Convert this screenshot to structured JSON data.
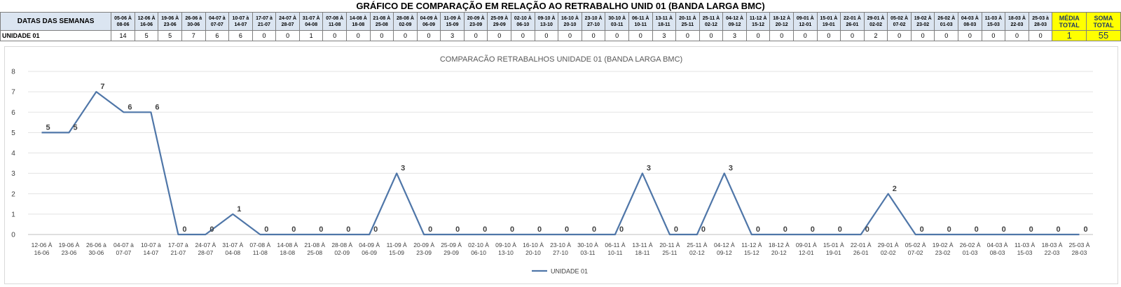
{
  "table": {
    "title": "GRÁFICO DE COMPARAÇÃO EM RELAÇÃO AO RETRABALHO UNID 01 (BANDA LARGA BMC)",
    "header_label": "DATAS DAS SEMANAS",
    "weeks": [
      [
        "05-06 À",
        "08-06"
      ],
      [
        "12-06 À",
        "16-06"
      ],
      [
        "19-06 À",
        "23-06"
      ],
      [
        "26-06 à",
        "30-06"
      ],
      [
        "04-07 à",
        "07-07"
      ],
      [
        "10-07 à",
        "14-07"
      ],
      [
        "17-07 à",
        "21-07"
      ],
      [
        "24-07 À",
        "28-07"
      ],
      [
        "31-07 À",
        "04-08"
      ],
      [
        "07-08 À",
        "11-08"
      ],
      [
        "14-08 À",
        "18-08"
      ],
      [
        "21-08 À",
        "25-08"
      ],
      [
        "28-08 À",
        "02-09"
      ],
      [
        "04-09 À",
        "06-09"
      ],
      [
        "11-09 À",
        "15-09"
      ],
      [
        "20-09 À",
        "23-09"
      ],
      [
        "25-09 À",
        "29-09"
      ],
      [
        "02-10 À",
        "06-10"
      ],
      [
        "09-10 À",
        "13-10"
      ],
      [
        "16-10 À",
        "20-10"
      ],
      [
        "23-10 À",
        "27-10"
      ],
      [
        "30-10 À",
        "03-11"
      ],
      [
        "06-11 À",
        "10-11"
      ],
      [
        "13-11 À",
        "18-11"
      ],
      [
        "20-11 À",
        "25-11"
      ],
      [
        "25-11 À",
        "02-12"
      ],
      [
        "04-12 À",
        "09-12"
      ],
      [
        "11-12 À",
        "15-12"
      ],
      [
        "18-12 À",
        "20-12"
      ],
      [
        "09-01 À",
        "12-01"
      ],
      [
        "15-01 À",
        "19-01"
      ],
      [
        "22-01 À",
        "26-01"
      ],
      [
        "29-01 À",
        "02-02"
      ],
      [
        "05-02 À",
        "07-02"
      ],
      [
        "19-02 À",
        "23-02"
      ],
      [
        "26-02 À",
        "01-03"
      ],
      [
        "04-03 À",
        "08-03"
      ],
      [
        "11-03 À",
        "15-03"
      ],
      [
        "18-03 À",
        "22-03"
      ],
      [
        "25-03 à",
        "28-03"
      ]
    ],
    "media_label": [
      "MÉDIA",
      "TOTAL"
    ],
    "soma_label": [
      "SOMA",
      "TOTAL"
    ],
    "row_label": "UNIDADE 01",
    "values": [
      14,
      5,
      5,
      7,
      6,
      6,
      0,
      0,
      1,
      0,
      0,
      0,
      0,
      0,
      3,
      0,
      0,
      0,
      0,
      0,
      0,
      0,
      0,
      3,
      0,
      0,
      3,
      0,
      0,
      0,
      0,
      0,
      2,
      0,
      0,
      0,
      0,
      0,
      0,
      0
    ],
    "media_value": "1",
    "soma_value": "55"
  },
  "chart_data": {
    "type": "line",
    "title": "COMPARACÃO RETRABALHOS UNIDADE 01 (BANDA LARGA BMC)",
    "categories": [
      [
        "12-06 À",
        "16-06"
      ],
      [
        "19-06 À",
        "23-06"
      ],
      [
        "26-06 à",
        "30-06"
      ],
      [
        "04-07 à",
        "07-07"
      ],
      [
        "10-07 à",
        "14-07"
      ],
      [
        "17-07 à",
        "21-07"
      ],
      [
        "24-07 À",
        "28-07"
      ],
      [
        "31-07 À",
        "04-08"
      ],
      [
        "07-08 À",
        "11-08"
      ],
      [
        "14-08 À",
        "18-08"
      ],
      [
        "21-08 À",
        "25-08"
      ],
      [
        "28-08 À",
        "02-09"
      ],
      [
        "04-09 À",
        "06-09"
      ],
      [
        "11-09 À",
        "15-09"
      ],
      [
        "20-09 À",
        "23-09"
      ],
      [
        "25-09 À",
        "29-09"
      ],
      [
        "02-10 À",
        "06-10"
      ],
      [
        "09-10 À",
        "13-10"
      ],
      [
        "16-10 À",
        "20-10"
      ],
      [
        "23-10 À",
        "27-10"
      ],
      [
        "30-10 À",
        "03-11"
      ],
      [
        "06-11 À",
        "10-11"
      ],
      [
        "13-11 À",
        "18-11"
      ],
      [
        "20-11 À",
        "25-11"
      ],
      [
        "25-11 À",
        "02-12"
      ],
      [
        "04-12 À",
        "09-12"
      ],
      [
        "11-12 À",
        "15-12"
      ],
      [
        "18-12 À",
        "20-12"
      ],
      [
        "09-01 À",
        "12-01"
      ],
      [
        "15-01 À",
        "19-01"
      ],
      [
        "22-01 À",
        "26-01"
      ],
      [
        "29-01 À",
        "02-02"
      ],
      [
        "05-02 À",
        "07-02"
      ],
      [
        "19-02 À",
        "23-02"
      ],
      [
        "26-02 À",
        "01-03"
      ],
      [
        "04-03 À",
        "08-03"
      ],
      [
        "11-03 À",
        "15-03"
      ],
      [
        "18-03 À",
        "22-03"
      ],
      [
        "25-03 À",
        "28-03"
      ]
    ],
    "series": [
      {
        "name": "UNIDADE 01",
        "color": "#4f76a8",
        "values": [
          5,
          5,
          7,
          6,
          6,
          0,
          0,
          1,
          0,
          0,
          0,
          0,
          0,
          3,
          0,
          0,
          0,
          0,
          0,
          0,
          0,
          0,
          3,
          0,
          0,
          3,
          0,
          0,
          0,
          0,
          0,
          2,
          0,
          0,
          0,
          0,
          0,
          0,
          0
        ]
      }
    ],
    "ylim": [
      0,
      8
    ],
    "yticks": [
      0,
      1,
      2,
      3,
      4,
      5,
      6,
      7,
      8
    ],
    "grid": true,
    "legend": "bottom"
  }
}
